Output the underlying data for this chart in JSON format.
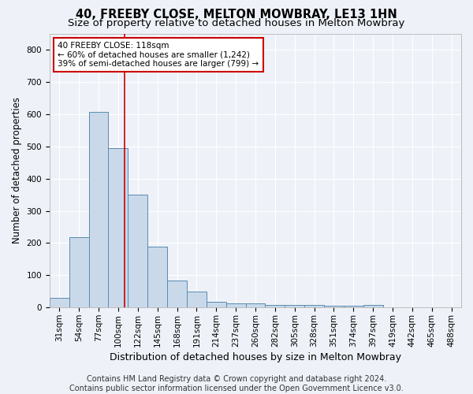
{
  "title1": "40, FREEBY CLOSE, MELTON MOWBRAY, LE13 1HN",
  "title2": "Size of property relative to detached houses in Melton Mowbray",
  "xlabel": "Distribution of detached houses by size in Melton Mowbray",
  "ylabel": "Number of detached properties",
  "footer1": "Contains HM Land Registry data © Crown copyright and database right 2024.",
  "footer2": "Contains public sector information licensed under the Open Government Licence v3.0.",
  "categories": [
    "31sqm",
    "54sqm",
    "77sqm",
    "100sqm",
    "122sqm",
    "145sqm",
    "168sqm",
    "191sqm",
    "214sqm",
    "237sqm",
    "260sqm",
    "282sqm",
    "305sqm",
    "328sqm",
    "351sqm",
    "374sqm",
    "397sqm",
    "419sqm",
    "442sqm",
    "465sqm",
    "488sqm"
  ],
  "values": [
    30,
    218,
    608,
    495,
    350,
    188,
    83,
    50,
    18,
    13,
    13,
    7,
    7,
    8,
    5,
    5,
    7,
    0,
    0,
    0,
    0
  ],
  "bar_color": "#c9d9ea",
  "bar_edge_color": "#5a8ab0",
  "vline_color": "#cc0000",
  "annotation_line1": "40 FREEBY CLOSE: 118sqm",
  "annotation_line2": "← 60% of detached houses are smaller (1,242)",
  "annotation_line3": "39% of semi-detached houses are larger (799) →",
  "annotation_box_color": "#ffffff",
  "annotation_box_edge": "#cc0000",
  "ylim": [
    0,
    850
  ],
  "yticks": [
    0,
    100,
    200,
    300,
    400,
    500,
    600,
    700,
    800
  ],
  "bg_color": "#eef2f8",
  "plot_bg": "#eef2f8",
  "grid_color": "#ffffff",
  "title1_fontsize": 10.5,
  "title2_fontsize": 9.5,
  "xlabel_fontsize": 9,
  "ylabel_fontsize": 8.5,
  "tick_fontsize": 7.5,
  "footer_fontsize": 7,
  "annot_fontsize": 7.5,
  "vline_pos": 3.32
}
